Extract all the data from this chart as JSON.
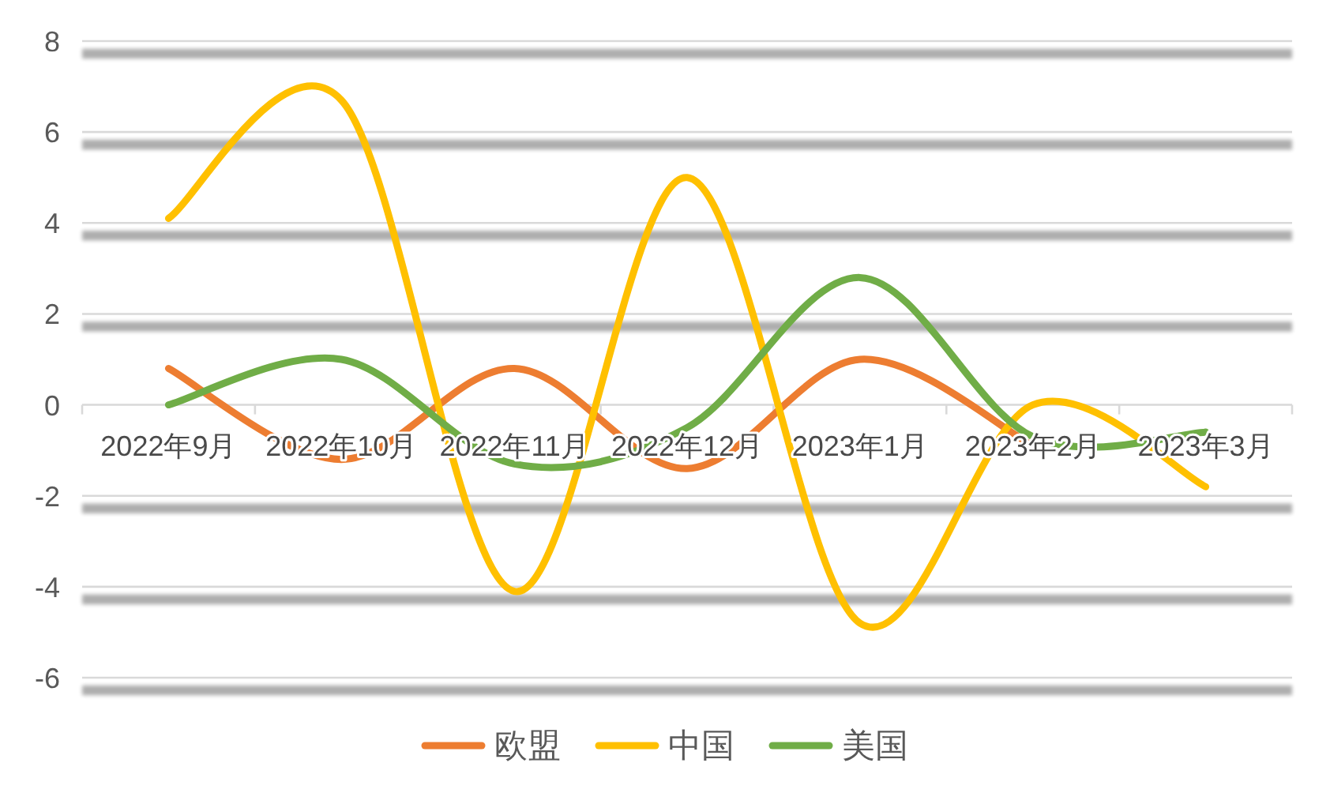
{
  "chart_data": {
    "type": "line",
    "categories": [
      "2022年9月",
      "2022年10月",
      "2022年11月",
      "2022年12月",
      "2023年1月",
      "2023年2月",
      "2023年3月"
    ],
    "series": [
      {
        "name": "欧盟",
        "color": "#ed7d31",
        "values": [
          0.8,
          -1.2,
          0.8,
          -1.4,
          1.0,
          -0.9,
          null
        ]
      },
      {
        "name": "中国",
        "color": "#ffc000",
        "values": [
          4.1,
          6.7,
          -4.1,
          5.0,
          -4.8,
          0.0,
          -1.8
        ]
      },
      {
        "name": "美国",
        "color": "#70ad47",
        "values": [
          0.0,
          1.0,
          -1.3,
          -0.5,
          2.8,
          -0.7,
          -0.6
        ]
      }
    ],
    "ylim": [
      -6,
      8
    ],
    "yticks": [
      -6,
      -4,
      -2,
      0,
      2,
      4,
      6,
      8
    ],
    "grid": "y",
    "legend": "bottom"
  }
}
